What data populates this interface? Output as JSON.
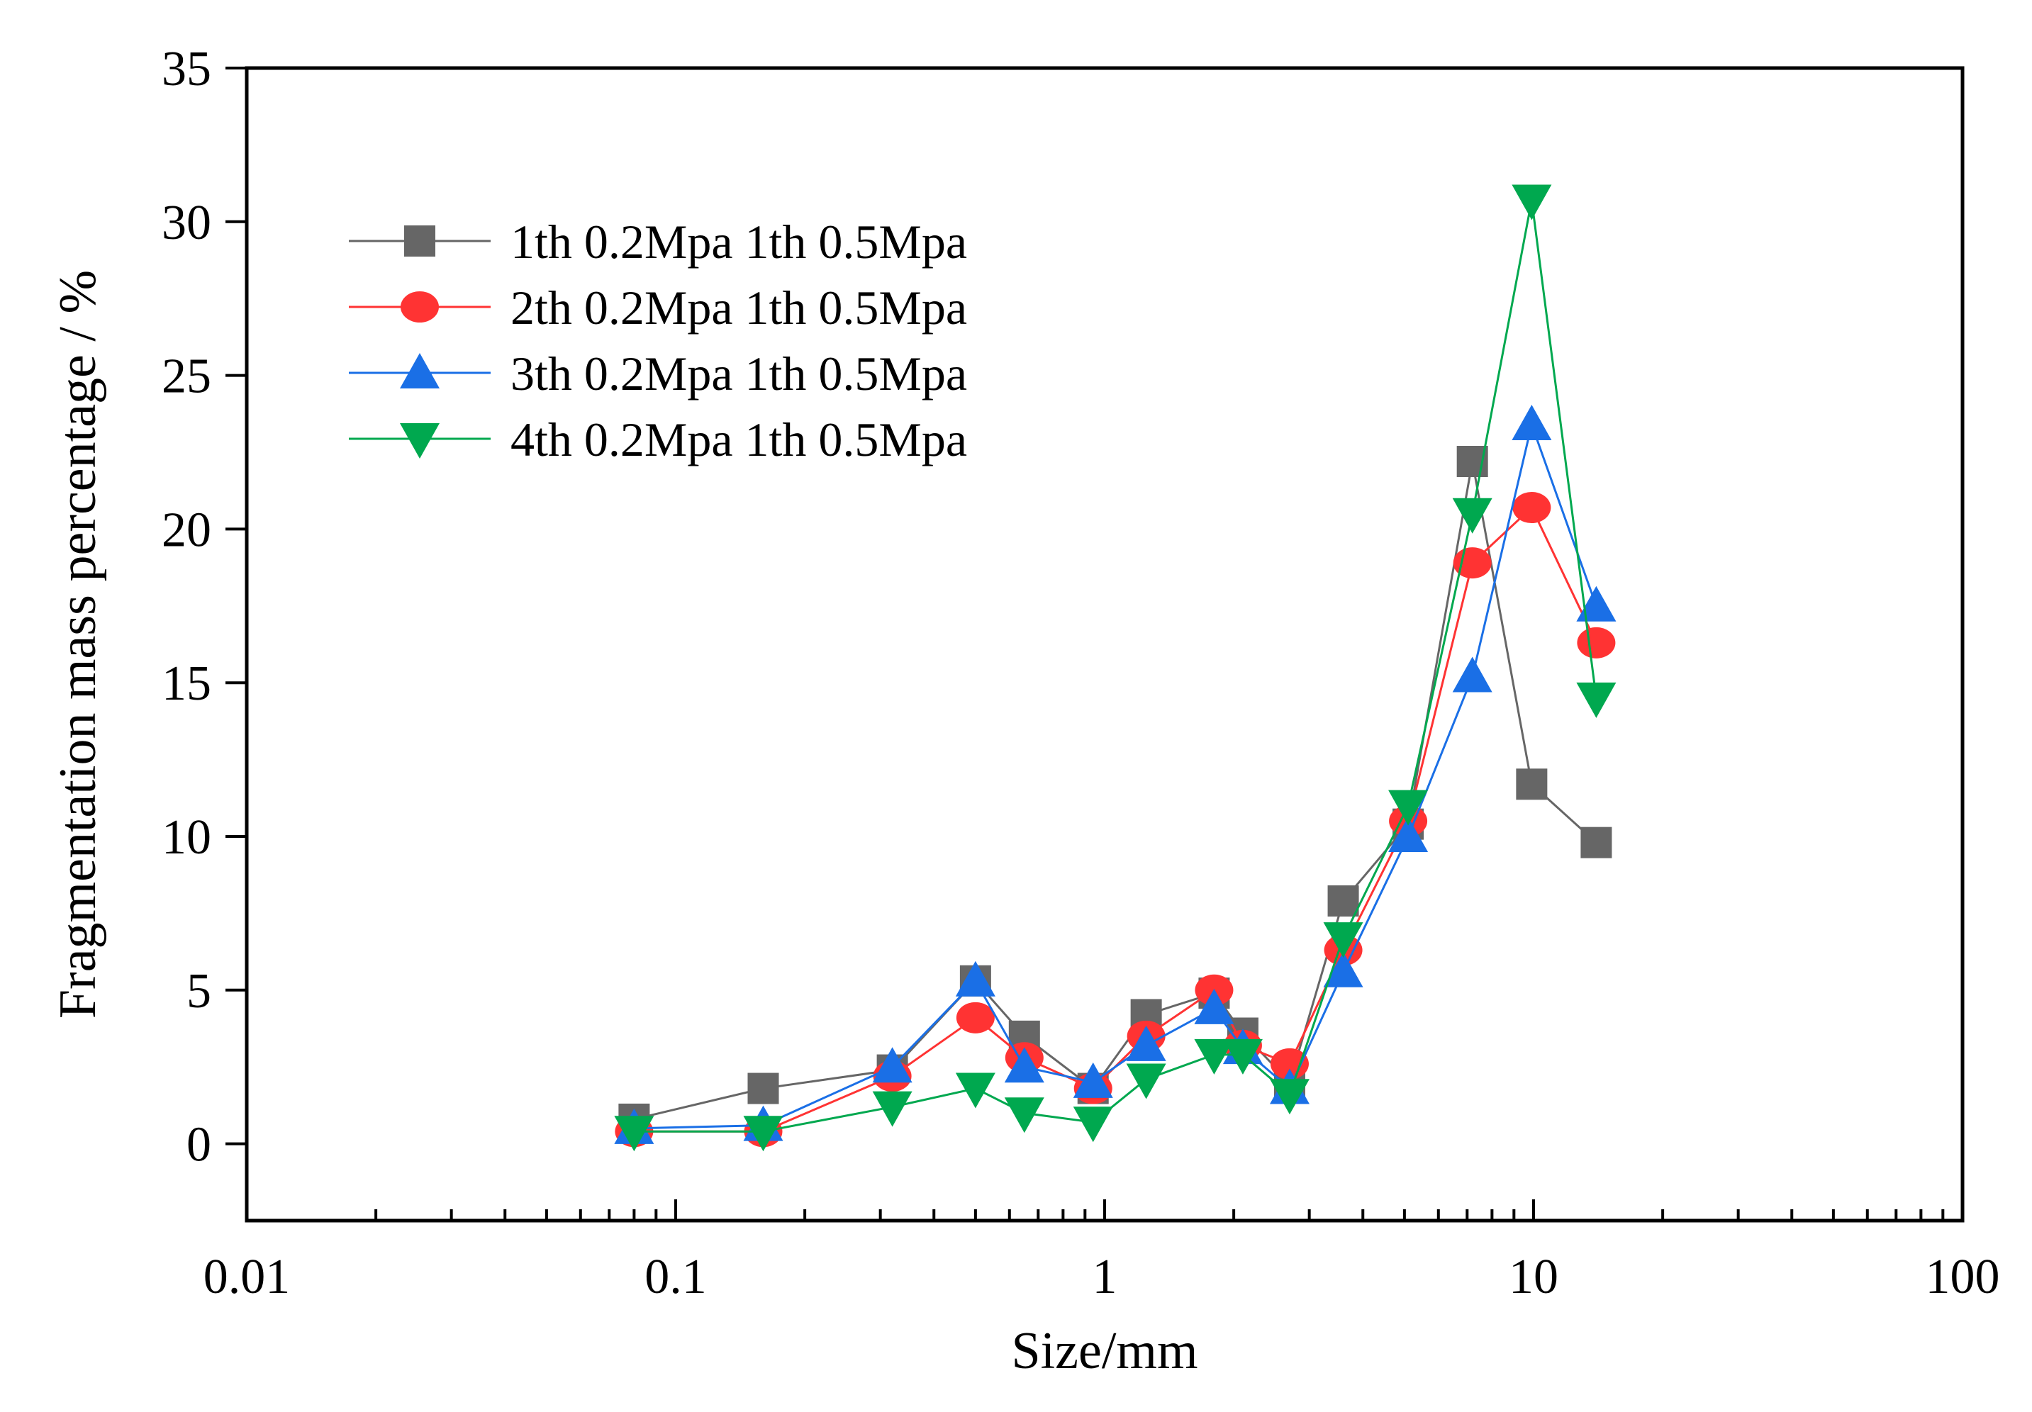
{
  "chart_data": {
    "type": "line",
    "title": "",
    "xlabel": "Size/mm",
    "ylabel": "Fragmentation mass percentage / %",
    "xscale": "log",
    "xlim": [
      0.01,
      100
    ],
    "ylim": [
      -2.5,
      35
    ],
    "x_ticks": [
      0.01,
      0.1,
      1,
      10,
      100
    ],
    "x_tick_labels": [
      "0.01",
      "0.1",
      "1",
      "10",
      "100"
    ],
    "y_ticks": [
      0,
      5,
      10,
      15,
      20,
      25,
      30,
      35
    ],
    "y_tick_labels": [
      "0",
      "5",
      "10",
      "15",
      "20",
      "25",
      "30",
      "35"
    ],
    "grid": false,
    "legend_position": "top-left",
    "x": [
      0.08,
      0.16,
      0.32,
      0.5,
      0.65,
      0.94,
      1.25,
      1.8,
      2.1,
      2.7,
      3.6,
      5.1,
      7.2,
      9.9,
      14.0
    ],
    "series": [
      {
        "name": "1th 0.2Mpa 1th 0.5Mpa",
        "marker": "square",
        "color": "#666666",
        "values": [
          0.8,
          1.8,
          2.4,
          5.3,
          3.5,
          1.8,
          4.2,
          4.9,
          3.6,
          2.0,
          7.9,
          10.4,
          22.2,
          11.7,
          9.8
        ]
      },
      {
        "name": "2th 0.2Mpa 1th 0.5Mpa",
        "marker": "circle",
        "color": "#ff3333",
        "values": [
          0.4,
          0.4,
          2.2,
          4.1,
          2.8,
          1.8,
          3.5,
          5.0,
          3.2,
          2.6,
          6.3,
          10.5,
          18.9,
          20.7,
          16.3
        ]
      },
      {
        "name": "3th 0.2Mpa 1th 0.5Mpa",
        "marker": "triangle-up",
        "color": "#1a6fe6",
        "values": [
          0.5,
          0.6,
          2.5,
          5.3,
          2.5,
          2.0,
          3.2,
          4.4,
          3.1,
          1.8,
          5.6,
          10.0,
          15.2,
          23.4,
          17.5
        ]
      },
      {
        "name": "4th 0.2Mpa 1th 0.5Mpa",
        "marker": "triangle-down",
        "color": "#00a84f",
        "values": [
          0.4,
          0.4,
          1.2,
          1.8,
          1.0,
          0.7,
          2.1,
          2.9,
          2.9,
          1.6,
          6.7,
          11.0,
          20.5,
          30.7,
          14.5
        ]
      }
    ]
  }
}
